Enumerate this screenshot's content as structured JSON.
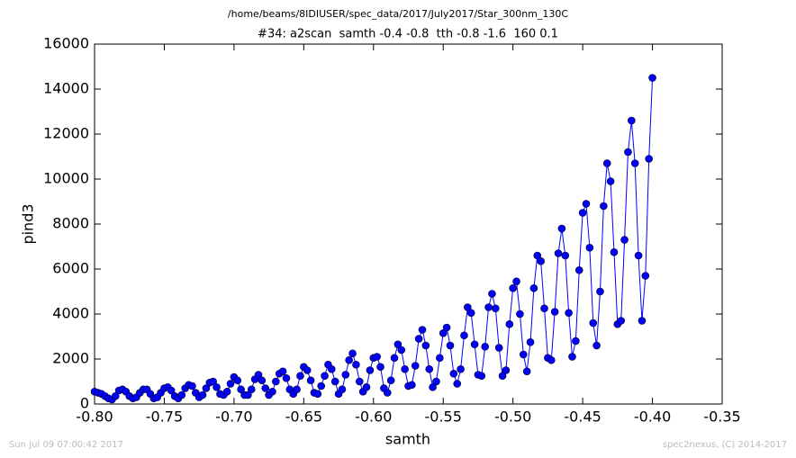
{
  "chart_data": {
    "type": "line",
    "file_title": "/home/beams/8IDIUSER/spec_data/2017/July2017/Star_300nm_130C",
    "title": "#34: a2scan  samth -0.4 -0.8  tth -0.8 -1.6  160 0.1",
    "x_label": "samth",
    "y_label": "pind3",
    "footer_left": "Sun Jul 09 07:00:42 2017",
    "footer_right": "spec2nexus, (C) 2014-2017",
    "xlim": [
      -0.8,
      -0.35
    ],
    "ylim": [
      0,
      16000
    ],
    "xticks": [
      {
        "value": -0.8,
        "label": "-0.80"
      },
      {
        "value": -0.75,
        "label": "-0.75"
      },
      {
        "value": -0.7,
        "label": "-0.70"
      },
      {
        "value": -0.65,
        "label": "-0.65"
      },
      {
        "value": -0.6,
        "label": "-0.60"
      },
      {
        "value": -0.55,
        "label": "-0.55"
      },
      {
        "value": -0.5,
        "label": "-0.50"
      },
      {
        "value": -0.45,
        "label": "-0.45"
      },
      {
        "value": -0.4,
        "label": "-0.40"
      },
      {
        "value": -0.35,
        "label": "-0.35"
      }
    ],
    "yticks": [
      0,
      2000,
      4000,
      6000,
      8000,
      10000,
      12000,
      14000,
      16000
    ],
    "x": [
      -0.8,
      -0.7975,
      -0.795,
      -0.7925,
      -0.79,
      -0.7875,
      -0.785,
      -0.7825,
      -0.78,
      -0.7775,
      -0.775,
      -0.7725,
      -0.77,
      -0.7675,
      -0.765,
      -0.7625,
      -0.76,
      -0.7575,
      -0.755,
      -0.7525,
      -0.75,
      -0.7475,
      -0.745,
      -0.7425,
      -0.74,
      -0.7375,
      -0.735,
      -0.7325,
      -0.73,
      -0.7275,
      -0.725,
      -0.7225,
      -0.72,
      -0.7175,
      -0.715,
      -0.7125,
      -0.71,
      -0.7075,
      -0.705,
      -0.7025,
      -0.7,
      -0.6975,
      -0.695,
      -0.6925,
      -0.69,
      -0.6875,
      -0.685,
      -0.6825,
      -0.68,
      -0.6775,
      -0.675,
      -0.6725,
      -0.67,
      -0.6675,
      -0.665,
      -0.6625,
      -0.66,
      -0.6575,
      -0.655,
      -0.6525,
      -0.65,
      -0.6475,
      -0.645,
      -0.6425,
      -0.64,
      -0.6375,
      -0.635,
      -0.6325,
      -0.63,
      -0.6275,
      -0.625,
      -0.6225,
      -0.62,
      -0.6175,
      -0.615,
      -0.6125,
      -0.61,
      -0.6075,
      -0.605,
      -0.6025,
      -0.6,
      -0.5975,
      -0.595,
      -0.5925,
      -0.59,
      -0.5875,
      -0.585,
      -0.5825,
      -0.58,
      -0.5775,
      -0.575,
      -0.5725,
      -0.57,
      -0.5675,
      -0.565,
      -0.5625,
      -0.56,
      -0.5575,
      -0.555,
      -0.5525,
      -0.55,
      -0.5475,
      -0.545,
      -0.5425,
      -0.54,
      -0.5375,
      -0.535,
      -0.5325,
      -0.53,
      -0.5275,
      -0.525,
      -0.5225,
      -0.52,
      -0.5175,
      -0.515,
      -0.5125,
      -0.51,
      -0.5075,
      -0.505,
      -0.5025,
      -0.5,
      -0.4975,
      -0.495,
      -0.4925,
      -0.49,
      -0.4875,
      -0.485,
      -0.4825,
      -0.48,
      -0.4775,
      -0.475,
      -0.4725,
      -0.47,
      -0.4675,
      -0.465,
      -0.4625,
      -0.46,
      -0.4575,
      -0.455,
      -0.4525,
      -0.45,
      -0.4475,
      -0.445,
      -0.4425,
      -0.44,
      -0.4375,
      -0.435,
      -0.4325,
      -0.43,
      -0.4275,
      -0.425,
      -0.4225,
      -0.42,
      -0.4175,
      -0.415,
      -0.4125,
      -0.41,
      -0.4075,
      -0.405,
      -0.4025,
      -0.4
    ],
    "series": [
      {
        "name": "pind3",
        "color": "#0000ff",
        "values": [
          550,
          500,
          450,
          350,
          250,
          200,
          350,
          600,
          650,
          550,
          350,
          250,
          300,
          500,
          650,
          650,
          450,
          250,
          300,
          500,
          700,
          750,
          600,
          350,
          250,
          400,
          700,
          850,
          800,
          500,
          300,
          400,
          700,
          950,
          1000,
          750,
          450,
          400,
          550,
          900,
          1200,
          1050,
          650,
          400,
          400,
          650,
          1100,
          1300,
          1050,
          700,
          400,
          550,
          1000,
          1350,
          1450,
          1150,
          650,
          450,
          650,
          1250,
          1650,
          1500,
          1050,
          500,
          450,
          800,
          1250,
          1750,
          1550,
          1000,
          450,
          650,
          1300,
          1950,
          2250,
          1750,
          1000,
          550,
          750,
          1500,
          2050,
          2100,
          1650,
          700,
          500,
          1050,
          2050,
          2650,
          2400,
          1550,
          800,
          850,
          1700,
          2900,
          3300,
          2600,
          1550,
          750,
          1000,
          2050,
          3150,
          3400,
          2600,
          1350,
          900,
          1550,
          3050,
          4300,
          4050,
          2650,
          1300,
          1250,
          2550,
          4300,
          4900,
          4250,
          2500,
          1250,
          1500,
          3550,
          5150,
          5450,
          4000,
          2200,
          1450,
          2750,
          5150,
          6600,
          6350,
          4250,
          2050,
          1950,
          4100,
          6700,
          7800,
          6600,
          4050,
          2100,
          2800,
          5950,
          8500,
          8900,
          6950,
          3600,
          2600,
          5000,
          8800,
          10700,
          9900,
          6750,
          3550,
          3700,
          7300,
          11200,
          12600,
          10700,
          6600,
          3700,
          5700,
          10900,
          14500
        ]
      }
    ]
  }
}
